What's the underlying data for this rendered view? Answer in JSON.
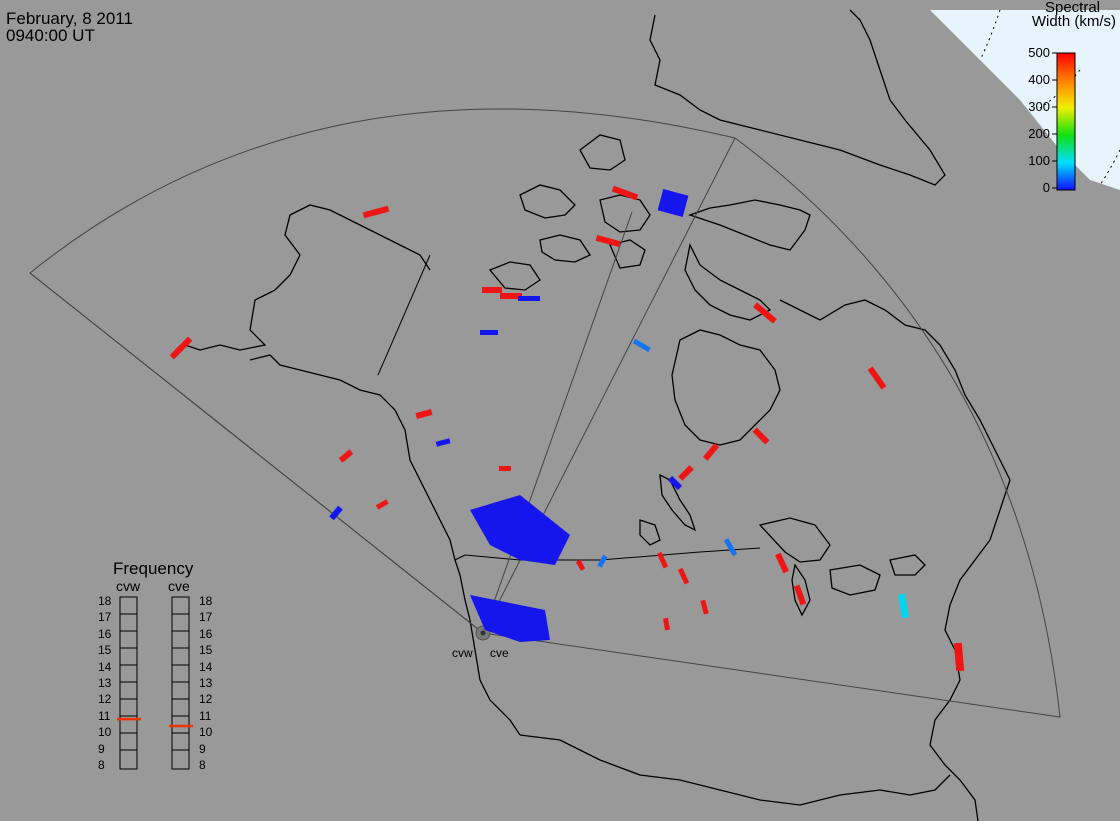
{
  "header": {
    "date": "February, 8 2011",
    "time": "0940:00 UT"
  },
  "colorbar": {
    "title_line1": "Spectral",
    "title_line2": "Width (km/s)",
    "ticks": [
      "500",
      "400",
      "300",
      "200",
      "100",
      "0"
    ]
  },
  "frequency_panel": {
    "title": "Frequency",
    "radars": [
      {
        "name": "cvw",
        "selected_mhz": 10.9
      },
      {
        "name": "cve",
        "selected_mhz": 10.5
      }
    ],
    "scale": [
      "18",
      "17",
      "16",
      "15",
      "14",
      "13",
      "12",
      "11",
      "10",
      "9",
      "8"
    ]
  },
  "sites": {
    "west": "cvw",
    "east": "cve"
  },
  "colors": {
    "background": "#999999",
    "ice": "#e8f4fc",
    "low_width": "#1515ee",
    "mid_width": "#00d4ee",
    "high_width": "#ee1515",
    "freq_marker": "#ee3300"
  }
}
